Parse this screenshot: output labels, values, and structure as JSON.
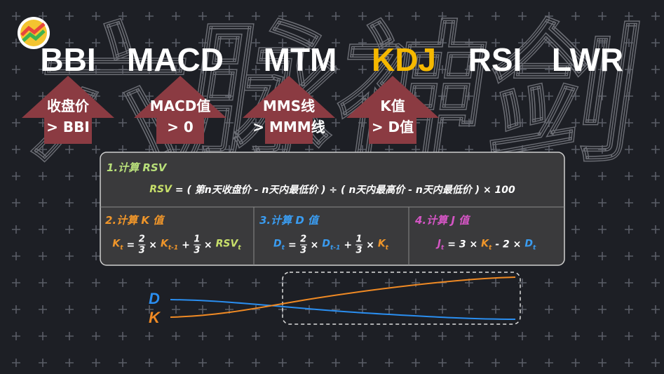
{
  "watermark": "六脉神剑",
  "indicators": [
    "BBI",
    "MACD",
    "MTM",
    "KDJ",
    "RSI",
    "LWR"
  ],
  "highlight_index": 3,
  "highlight_color": "#f5b800",
  "conditions": [
    [
      "收盘价",
      "> BBI"
    ],
    [
      "MACD值",
      "> 0"
    ],
    [
      "MMS线",
      "> MMM线"
    ],
    [
      "K值",
      "> D值"
    ]
  ],
  "steps": [
    {
      "title": "1.计算 RSV",
      "color": "#b8df7a",
      "formula": [
        {
          "text": "RSV",
          "color": "#c8e06a"
        },
        {
          "text": "= ( 第n天收盘价 - n天内最低价 ) ÷ ( n天内最高价 - n天内最低价 ) × 100"
        }
      ]
    },
    {
      "title": "2.计算 K 值",
      "color": "#f0962a",
      "formula": [
        {
          "text": "K",
          "sub": "t",
          "color": "#f0962a"
        },
        {
          "text": "="
        },
        {
          "num": "2",
          "den": "3"
        },
        {
          "text": "×"
        },
        {
          "text": "K",
          "sub": "t-1",
          "color": "#f0962a"
        },
        {
          "text": "+"
        },
        {
          "num": "1",
          "den": "3"
        },
        {
          "text": "×"
        },
        {
          "text": "RSV",
          "sub": "t",
          "color": "#c8e06a"
        }
      ]
    },
    {
      "title": "3.计算 D 值",
      "color": "#3a9cf0",
      "formula": [
        {
          "text": "D",
          "sub": "t",
          "color": "#3a9cf0"
        },
        {
          "text": "="
        },
        {
          "num": "2",
          "den": "3"
        },
        {
          "text": "×"
        },
        {
          "text": "D",
          "sub": "t-1",
          "color": "#3a9cf0"
        },
        {
          "text": "+"
        },
        {
          "num": "1",
          "den": "3"
        },
        {
          "text": "×"
        },
        {
          "text": "K",
          "sub": "t",
          "color": "#f0962a"
        }
      ]
    },
    {
      "title": "4.计算 J 值",
      "color": "#d455c4",
      "formula": [
        {
          "text": "J",
          "sub": "t",
          "color": "#d455c4"
        },
        {
          "text": "= 3 ×"
        },
        {
          "text": "K",
          "sub": "t",
          "color": "#f0962a"
        },
        {
          "text": "- 2 ×"
        },
        {
          "text": "D",
          "sub": "t",
          "color": "#3a9cf0"
        }
      ]
    }
  ],
  "chart": {
    "labels": [
      {
        "text": "D",
        "color": "#2a8ef0"
      },
      {
        "text": "K",
        "color": "#f08a24"
      }
    ]
  }
}
